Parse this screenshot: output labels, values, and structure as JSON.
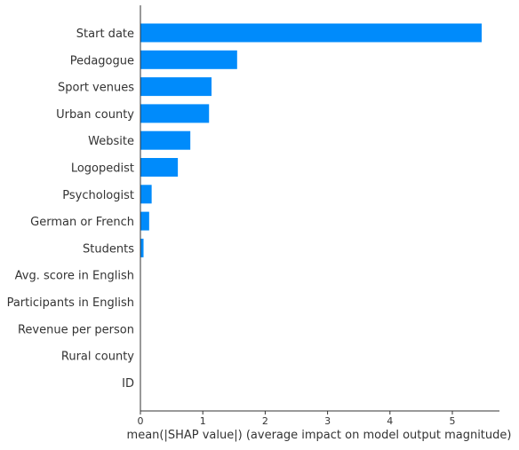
{
  "chart_data": {
    "type": "bar",
    "orientation": "horizontal",
    "title": "",
    "xlabel": "mean(|SHAP value|) (average impact on model output magnitude)",
    "ylabel": "",
    "categories": [
      "Start date",
      "Pedagogue",
      "Sport venues",
      "Urban county",
      "Website",
      "Logopedist",
      "Psychologist",
      "German or French",
      "Students",
      "Avg. score in English",
      "Participants in English",
      "Revenue per person",
      "Rural county",
      "ID"
    ],
    "values": [
      5.47,
      1.55,
      1.14,
      1.1,
      0.8,
      0.6,
      0.18,
      0.14,
      0.05,
      0,
      0,
      0,
      0,
      0
    ],
    "xlim": [
      0,
      5.8
    ],
    "xticks": [
      "0",
      "1",
      "2",
      "3",
      "4",
      "5"
    ],
    "bar_color": "#008bfb",
    "axis_color": "#333333",
    "grid": false,
    "legend": "none"
  }
}
